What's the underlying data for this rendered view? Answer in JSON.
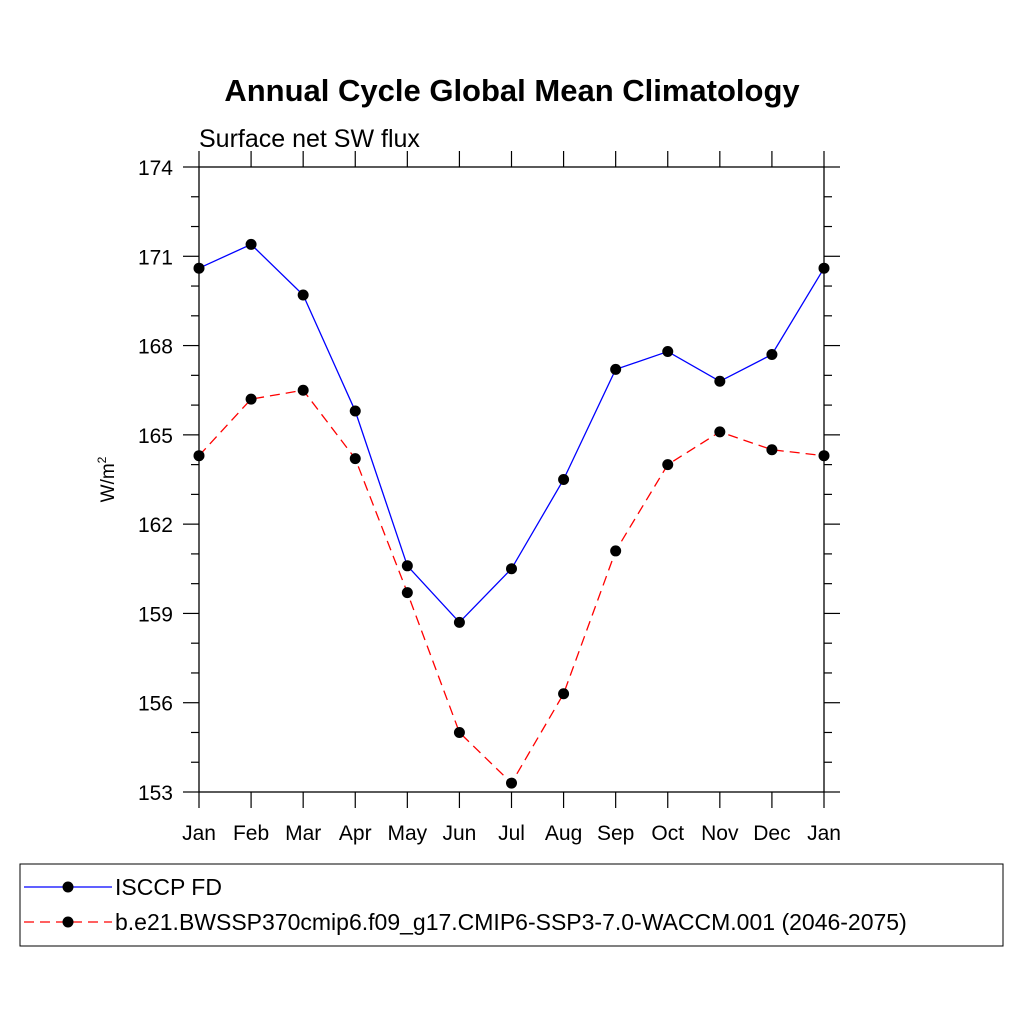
{
  "chart_data": {
    "type": "line",
    "title": "Annual Cycle Global Mean Climatology",
    "subtitle": "Surface net SW flux",
    "xlabel": "",
    "ylabel": "W/m",
    "ylabel_superscript": "2",
    "categories": [
      "Jan",
      "Feb",
      "Mar",
      "Apr",
      "May",
      "Jun",
      "Jul",
      "Aug",
      "Sep",
      "Oct",
      "Nov",
      "Dec",
      "Jan"
    ],
    "ylim": [
      153,
      174
    ],
    "yticks": [
      153,
      156,
      159,
      162,
      165,
      168,
      171,
      174
    ],
    "grid": false,
    "legend_position": "bottom",
    "series": [
      {
        "name": "ISCCP FD",
        "color": "#0000ff",
        "line_style": "solid",
        "marker": "filled-circle",
        "values": [
          170.6,
          171.4,
          169.7,
          165.8,
          160.6,
          158.7,
          160.5,
          163.5,
          167.2,
          167.8,
          166.8,
          167.7,
          170.6
        ]
      },
      {
        "name": "b.e21.BWSSP370cmip6.f09_g17.CMIP6-SSP3-7.0-WACCM.001 (2046-2075)",
        "color": "#ff0000",
        "line_style": "dashed",
        "marker": "filled-circle",
        "values": [
          164.3,
          166.2,
          166.5,
          164.2,
          159.7,
          155.0,
          153.3,
          156.3,
          161.1,
          164.0,
          165.1,
          164.5,
          164.3
        ]
      }
    ]
  }
}
